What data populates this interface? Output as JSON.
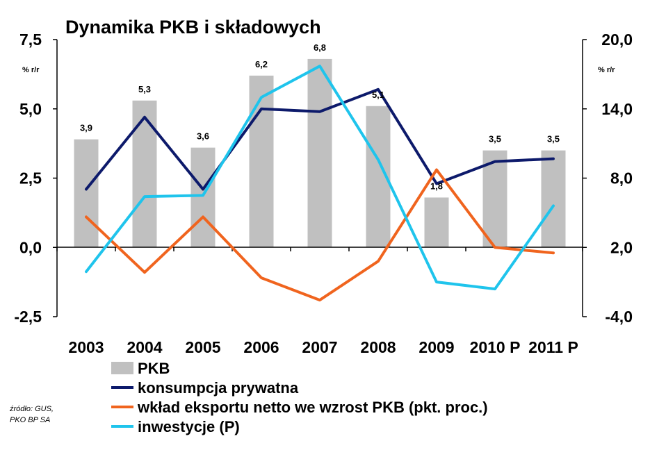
{
  "chart_data": {
    "type": "bar",
    "title": "Dynamika PKB i składowych",
    "categories": [
      "2003",
      "2004",
      "2005",
      "2006",
      "2007",
      "2008",
      "2009",
      "2010 P",
      "2011 P"
    ],
    "y_left": {
      "unit": "% r/r",
      "ylim": [
        -2.5,
        7.5
      ],
      "ticks": [
        "7,5",
        "5,0",
        "2,5",
        "0,0",
        "-2,5"
      ]
    },
    "y_right": {
      "unit": "% r/r",
      "ylim": [
        -4.0,
        20.0
      ],
      "ticks": [
        "20,0",
        "14,0",
        "8,0",
        "2,0",
        "-4,0"
      ]
    },
    "series": [
      {
        "name": "PKB",
        "kind": "bar",
        "axis": "left",
        "color": "#c0c0c0",
        "values": [
          3.9,
          5.3,
          3.6,
          6.2,
          6.8,
          5.1,
          1.8,
          3.5,
          3.5
        ],
        "labels": [
          "3,9",
          "5,3",
          "3,6",
          "6,2",
          "6,8",
          "5,1",
          "1,8",
          "3,5",
          "3,5"
        ]
      },
      {
        "name": "konsumpcja prywatna",
        "kind": "line",
        "axis": "left",
        "color": "#0d1a6b",
        "values": [
          2.1,
          4.7,
          2.1,
          5.0,
          4.9,
          5.7,
          2.3,
          3.1,
          3.2
        ]
      },
      {
        "name": "wkład eksportu netto we wzrost PKB (pkt. proc.)",
        "kind": "line",
        "axis": "left",
        "color": "#f0641e",
        "values": [
          1.1,
          -0.9,
          1.1,
          -1.1,
          -1.9,
          -0.5,
          2.8,
          0.0,
          -0.2
        ]
      },
      {
        "name": "inwestycje (P)",
        "kind": "line",
        "axis": "right",
        "color": "#1fc4ec",
        "values": [
          -0.1,
          6.4,
          6.5,
          15.0,
          17.7,
          9.6,
          -1.0,
          -1.6,
          5.6
        ]
      }
    ],
    "grid": false,
    "legend": "bottom"
  },
  "source": {
    "line1": "źródło: GUS,",
    "line2": "PKO BP SA"
  }
}
